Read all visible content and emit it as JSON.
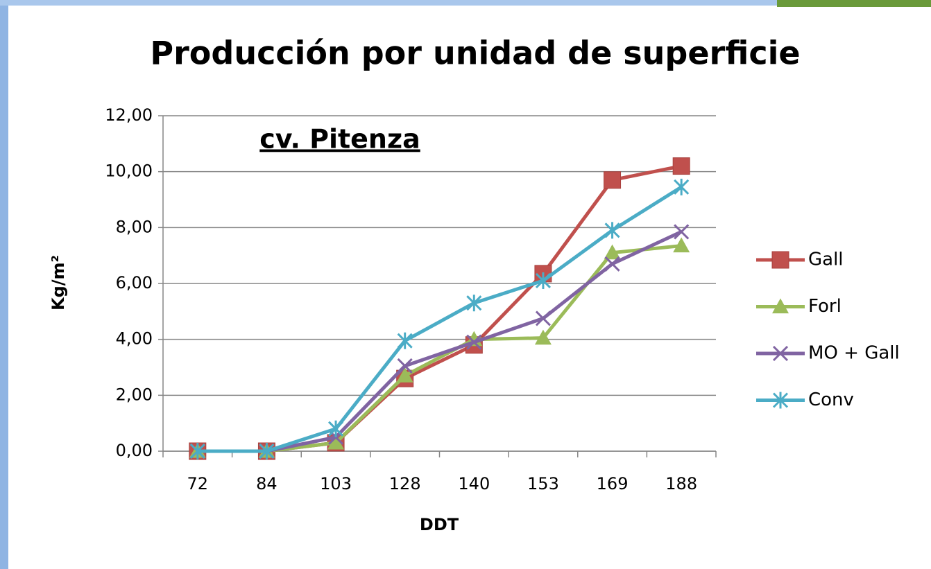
{
  "chart_data": {
    "type": "line",
    "title": "Producción por unidad de superficie",
    "annotation": "cv. Pitenza",
    "x_label": "DDT",
    "y_label": "Kg/m²",
    "categories": [
      "72",
      "84",
      "103",
      "128",
      "140",
      "153",
      "169",
      "188"
    ],
    "series": [
      {
        "name": "Gall",
        "color": "#c0504d",
        "marker": "square",
        "values": [
          0,
          0,
          0.3,
          2.6,
          3.8,
          6.35,
          9.7,
          10.2
        ]
      },
      {
        "name": "Forl",
        "color": "#9bbb59",
        "marker": "triangle",
        "values": [
          0,
          0,
          0.3,
          2.7,
          4.0,
          4.05,
          7.1,
          7.35
        ]
      },
      {
        "name": "MO + Gall",
        "color": "#8064a2",
        "marker": "x",
        "values": [
          0,
          0,
          0.5,
          3.05,
          3.9,
          4.75,
          6.7,
          7.85
        ]
      },
      {
        "name": "Conv",
        "color": "#4bacc6",
        "marker": "asterisk",
        "values": [
          0,
          0,
          0.8,
          3.95,
          5.3,
          6.1,
          7.9,
          9.45
        ]
      }
    ],
    "ylim": [
      0,
      12
    ],
    "yticks": [
      {
        "value": 0,
        "label": "0,00"
      },
      {
        "value": 2,
        "label": "2,00"
      },
      {
        "value": 4,
        "label": "4,00"
      },
      {
        "value": 6,
        "label": "6,00"
      },
      {
        "value": 8,
        "label": "8,00"
      },
      {
        "value": 10,
        "label": "10,00"
      },
      {
        "value": 12,
        "label": "12,00"
      }
    ],
    "grid": true,
    "legend": "right"
  }
}
